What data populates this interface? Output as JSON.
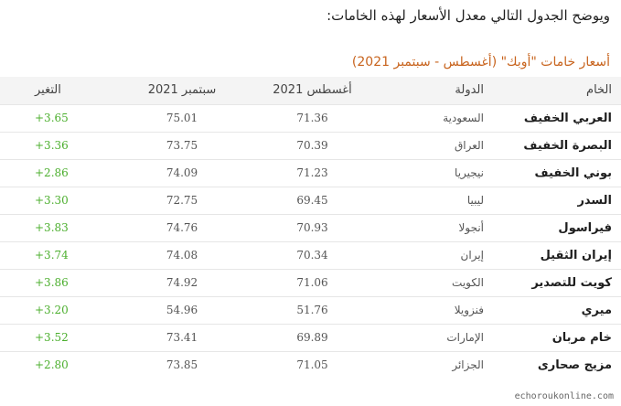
{
  "intro": "ويوضح الجدول التالي معدل الأسعار لهذه الخامات:",
  "table_title": "أسعار خامات \"أوبك\" (أغسطس - سبتمبر 2021)",
  "headers": {
    "crude": "الخام",
    "country": "الدولة",
    "august": "أغسطس 2021",
    "september": "سبتمبر 2021",
    "change": "التغير"
  },
  "rows": [
    {
      "crude": "العربي الخفيف",
      "country": "السعودية",
      "august": "71.36",
      "september": "75.01",
      "change": "+3.65"
    },
    {
      "crude": "البصرة الخفيف",
      "country": "العراق",
      "august": "70.39",
      "september": "73.75",
      "change": "+3.36"
    },
    {
      "crude": "بوني الخفيف",
      "country": "نيجيريا",
      "august": "71.23",
      "september": "74.09",
      "change": "+2.86"
    },
    {
      "crude": "السدر",
      "country": "ليبيا",
      "august": "69.45",
      "september": "72.75",
      "change": "+3.30"
    },
    {
      "crude": "فيراسول",
      "country": "أنجولا",
      "august": "70.93",
      "september": "74.76",
      "change": "+3.83"
    },
    {
      "crude": "إيران الثقيل",
      "country": "إيران",
      "august": "70.34",
      "september": "74.08",
      "change": "+3.74"
    },
    {
      "crude": "كويت للتصدير",
      "country": "الكويت",
      "august": "71.06",
      "september": "74.92",
      "change": "+3.86"
    },
    {
      "crude": "ميري",
      "country": "فنزويلا",
      "august": "51.76",
      "september": "54.96",
      "change": "+3.20"
    },
    {
      "crude": "خام مربان",
      "country": "الإمارات",
      "august": "69.89",
      "september": "73.41",
      "change": "+3.52"
    },
    {
      "crude": "مزيج صحارى",
      "country": "الجزائر",
      "august": "71.05",
      "september": "73.85",
      "change": "+2.80"
    }
  ],
  "watermark": "echoroukonline.com",
  "colors": {
    "title": "#c8641e",
    "change_positive": "#4caf2e",
    "header_bg": "#f4f4f4"
  }
}
